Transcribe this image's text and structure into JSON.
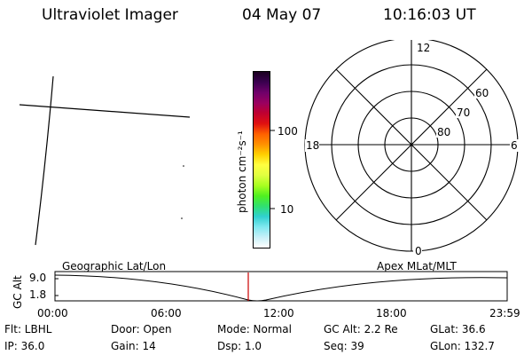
{
  "header": {
    "instrument": "Ultraviolet Imager",
    "date": "04 May 07",
    "time": "10:16:03 UT"
  },
  "colorbar": {
    "unit_label": "photon cm⁻²s⁻¹",
    "tick_labels": [
      "100",
      "10"
    ],
    "colors": [
      "#1a0020",
      "#3a0050",
      "#70006a",
      "#9a0060",
      "#c00030",
      "#e01010",
      "#ff6000",
      "#ff9000",
      "#ffd000",
      "#ffff40",
      "#e0ff40",
      "#a8ff20",
      "#50f020",
      "#30e070",
      "#30d0d0",
      "#80e8f0",
      "#c8f0f8",
      "#ffffff"
    ]
  },
  "polar": {
    "mlt_labels": [
      "12",
      "18",
      "6",
      "0"
    ],
    "mlat_labels": [
      "60",
      "70",
      "80"
    ]
  },
  "timeline": {
    "left_label": "Geographic Lat/Lon",
    "right_label": "Apex MLat/MLT",
    "axis_title": "GC Alt",
    "y_ticks": [
      "9.0",
      "1.8"
    ],
    "x_ticks": [
      "00:00",
      "06:00",
      "12:00",
      "18:00",
      "23:59"
    ],
    "marker_time": "10:16",
    "marker_color": "#cc0000"
  },
  "info": {
    "row1": {
      "filter": "Flt: LBHL",
      "door": "Door: Open",
      "mode": "Mode: Normal",
      "gc_alt": "GC Alt: 2.2 Re",
      "glat": "GLat:  36.6"
    },
    "row2": {
      "ip": "IP: 36.0",
      "gain": "Gain: 14",
      "dsp": "Dsp:     1.0",
      "seq": "Seq: 39",
      "glon": "GLon: 132.7"
    }
  }
}
